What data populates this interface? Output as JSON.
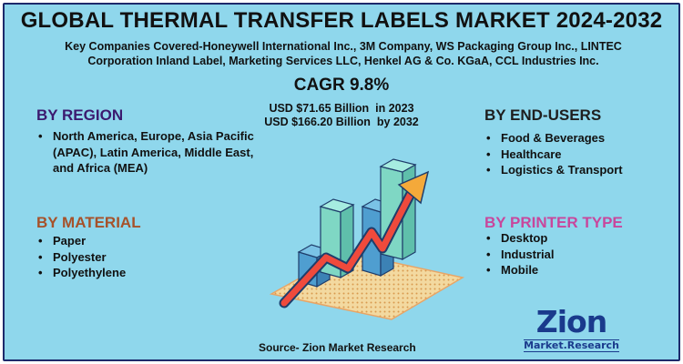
{
  "title": "GLOBAL THERMAL TRANSFER LABELS MARKET 2024-2032",
  "companies_line1": "Key Companies Covered-Honeywell International Inc., 3M Company, WS Packaging Group Inc., LINTEC",
  "companies_line2": "Corporation Inland Label, Marketing Services LLC, Henkel AG & Co. KGaA, CCL Industries Inc.",
  "cagr": "CAGR 9.8%",
  "value_2023": "USD $71.65 Billion  in 2023",
  "value_2032": "USD $166.20 Billion  by 2032",
  "region": {
    "heading": "BY REGION",
    "items": [
      "North America, Europe, Asia Pacific (APAC), Latin America, Middle East, and Africa (MEA)"
    ]
  },
  "material": {
    "heading": "BY MATERIAL",
    "items": [
      "Paper",
      "Polyester",
      "Polyethylene"
    ]
  },
  "end_users": {
    "heading": "BY END-USERS",
    "items": [
      "Food & Beverages",
      "Healthcare",
      "Logistics & Transport"
    ]
  },
  "printer_type": {
    "heading": "BY PRINTER TYPE",
    "items": [
      "Desktop",
      "Industrial",
      "Mobile"
    ]
  },
  "source": "Source- Zion Market Research",
  "logo": {
    "word": "Zion",
    "sub": "Market.Research"
  },
  "colors": {
    "background": "#8fd7ec",
    "region_heading": "#3b1a6f",
    "material_heading": "#a6522a",
    "printer_heading": "#c8479c",
    "logo": "#1a3a8c"
  },
  "illustration": {
    "icons": [
      "bar-chart-3d-icon",
      "growth-arrow-icon"
    ]
  }
}
